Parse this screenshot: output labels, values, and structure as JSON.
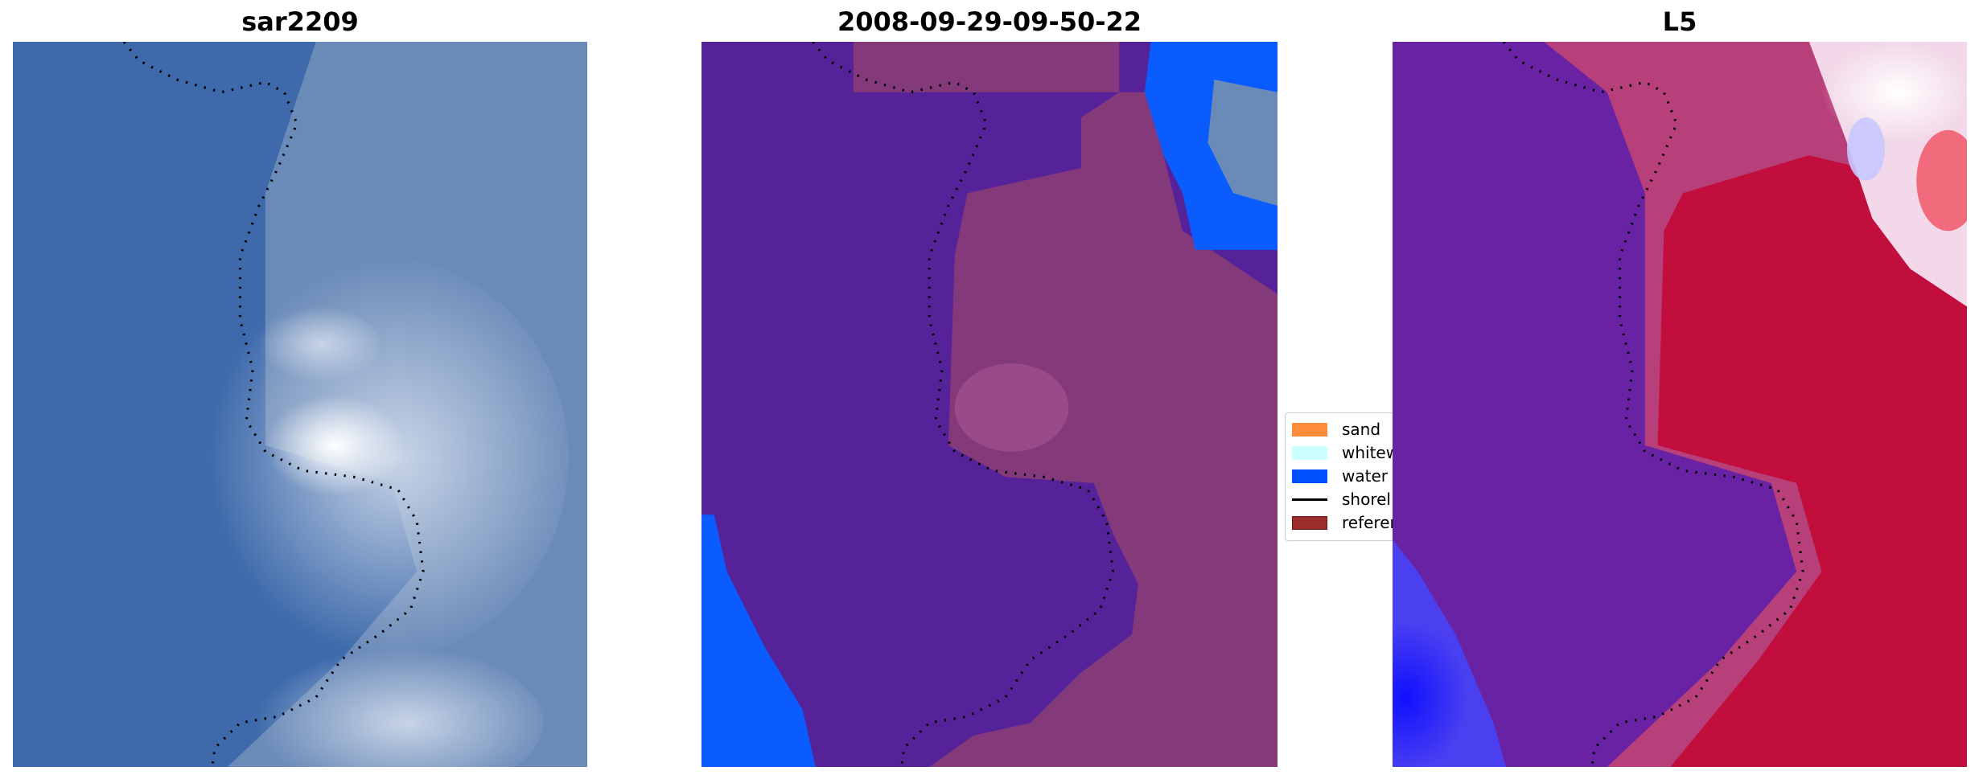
{
  "panels": [
    {
      "title": "sar2209"
    },
    {
      "title": "2008-09-29-09-50-22"
    },
    {
      "title": "L5"
    }
  ],
  "legend": {
    "items": [
      {
        "label": "sand",
        "color": "#ff8c3a"
      },
      {
        "label": "whitew",
        "color": "#ccffff"
      },
      {
        "label": "water",
        "color": "#0050ff"
      },
      {
        "label": "shorel",
        "color": "#000000"
      },
      {
        "label": "referer",
        "color": "#9b2d2d"
      }
    ]
  }
}
